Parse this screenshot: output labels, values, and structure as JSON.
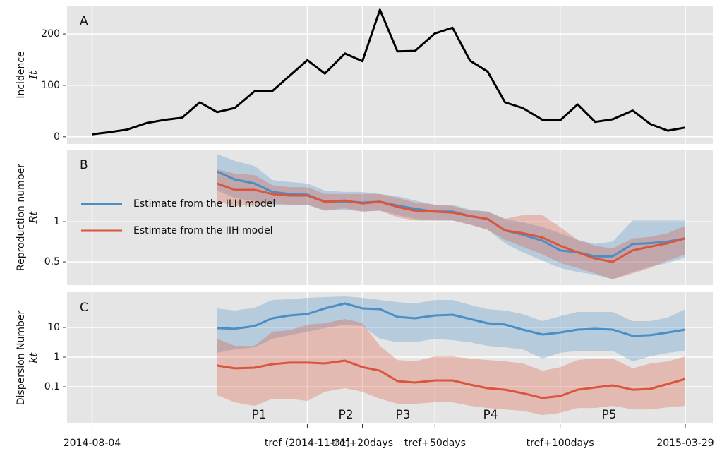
{
  "chart_data": [
    {
      "type": "line",
      "panel_label": "A",
      "ylabel": "Incidence",
      "ylabel_symbol": "It",
      "x": [
        0,
        7,
        14,
        22,
        29,
        36,
        43,
        50,
        57,
        65,
        72,
        79,
        86,
        93,
        101,
        108,
        115,
        122,
        129,
        137,
        144,
        151,
        158,
        165,
        172,
        180,
        187,
        194,
        201,
        208,
        216,
        223,
        230,
        237
      ],
      "series": [
        {
          "color": "#000000",
          "values": [
            5,
            9,
            14,
            27,
            33,
            37,
            67,
            48,
            56,
            89,
            89,
            119,
            149,
            123,
            162,
            147,
            247,
            166,
            167,
            201,
            212,
            148,
            127,
            67,
            56,
            33,
            32,
            63,
            29,
            34,
            51,
            25,
            12,
            18
          ]
        }
      ],
      "ylim": [
        -14,
        255
      ],
      "yticks": [
        0,
        100,
        200
      ],
      "grid": true
    },
    {
      "type": "band-line",
      "panel_label": "B",
      "ylabel": "Reproduction number",
      "ylabel_symbol": "Rt",
      "log_scale": true,
      "x": [
        50,
        57,
        65,
        72,
        79,
        86,
        93,
        101,
        108,
        115,
        122,
        129,
        137,
        144,
        151,
        158,
        165,
        172,
        180,
        187,
        194,
        201,
        208,
        216,
        223,
        230,
        237
      ],
      "series": [
        {
          "name": "Estimate from the ILH model",
          "color": "#4a8ec6",
          "values": [
            2.37,
            2.07,
            1.93,
            1.67,
            1.61,
            1.59,
            1.41,
            1.42,
            1.39,
            1.41,
            1.32,
            1.25,
            1.19,
            1.19,
            1.1,
            1.05,
            0.86,
            0.8,
            0.72,
            0.61,
            0.59,
            0.55,
            0.55,
            0.68,
            0.69,
            0.71,
            0.75
          ],
          "upper": [
            3.21,
            2.85,
            2.61,
            2.05,
            1.98,
            1.93,
            1.71,
            1.67,
            1.67,
            1.61,
            1.55,
            1.44,
            1.34,
            1.34,
            1.23,
            1.19,
            1.05,
            0.99,
            0.91,
            0.82,
            0.73,
            0.68,
            0.71,
            1.02,
            1.02,
            1.02,
            1.02
          ],
          "lower": [
            1.71,
            1.51,
            1.42,
            1.34,
            1.34,
            1.34,
            1.21,
            1.23,
            1.19,
            1.21,
            1.12,
            1.05,
            1.02,
            1.02,
            0.95,
            0.87,
            0.69,
            0.59,
            0.51,
            0.45,
            0.42,
            0.4,
            0.37,
            0.42,
            0.46,
            0.49,
            0.54
          ]
        },
        {
          "name": "Estimate from the IIH model",
          "color": "#d9553b",
          "values": [
            1.93,
            1.73,
            1.73,
            1.61,
            1.57,
            1.57,
            1.41,
            1.44,
            1.37,
            1.41,
            1.29,
            1.21,
            1.19,
            1.17,
            1.1,
            1.05,
            0.86,
            0.82,
            0.76,
            0.66,
            0.59,
            0.53,
            0.5,
            0.61,
            0.65,
            0.69,
            0.75
          ],
          "upper": [
            2.46,
            2.29,
            2.23,
            1.88,
            1.81,
            1.81,
            1.61,
            1.61,
            1.61,
            1.61,
            1.51,
            1.39,
            1.34,
            1.31,
            1.21,
            1.19,
            1.05,
            1.12,
            1.12,
            0.91,
            0.73,
            0.66,
            0.63,
            0.75,
            0.77,
            0.82,
            0.93
          ],
          "lower": [
            1.42,
            1.31,
            1.34,
            1.37,
            1.34,
            1.34,
            1.21,
            1.26,
            1.19,
            1.21,
            1.08,
            1.02,
            1.02,
            1.02,
            0.95,
            0.87,
            0.73,
            0.65,
            0.57,
            0.49,
            0.45,
            0.41,
            0.37,
            0.41,
            0.45,
            0.51,
            0.57
          ]
        }
      ],
      "ylim": [
        0.335,
        3.46
      ],
      "yticks": [
        0.5,
        1
      ],
      "grid": true,
      "legend": "center left"
    },
    {
      "type": "band-line",
      "panel_label": "C",
      "ylabel": "Dispersion Number",
      "ylabel_symbol": "kt",
      "log_scale": true,
      "x": [
        50,
        57,
        65,
        72,
        79,
        86,
        93,
        101,
        108,
        115,
        122,
        129,
        137,
        144,
        151,
        158,
        165,
        172,
        180,
        187,
        194,
        201,
        208,
        216,
        223,
        230,
        237
      ],
      "series": [
        {
          "color": "#4a8ec6",
          "values": [
            9.5,
            9.0,
            11.2,
            20.4,
            25.4,
            28.3,
            44,
            64.5,
            44,
            41.6,
            22.8,
            20.4,
            25.4,
            26.8,
            19.3,
            13.9,
            12.5,
            8.5,
            5.8,
            6.8,
            8.5,
            9.0,
            8.5,
            5.2,
            5.5,
            6.8,
            8.5
          ],
          "upper": [
            44,
            37.3,
            46.4,
            84.8,
            89.6,
            100,
            105.6,
            111.6,
            100,
            84.8,
            71.9,
            64.5,
            84.8,
            84.8,
            57.8,
            41.6,
            37.3,
            28.3,
            16.4,
            24.0,
            33.4,
            33.4,
            33.4,
            16.4,
            16.4,
            21.5,
            41.6
          ],
          "lower": [
            1.39,
            1.83,
            2.15,
            4.16,
            5.47,
            7.2,
            9.5,
            12.5,
            11.2,
            4.16,
            3.16,
            3.16,
            4.16,
            3.73,
            3.16,
            2.4,
            2.15,
            1.83,
            0.9,
            1.39,
            1.64,
            1.64,
            1.64,
            0.72,
            1.06,
            1.39,
            1.64
          ]
        },
        {
          "color": "#d9553b",
          "values": [
            0.52,
            0.42,
            0.44,
            0.58,
            0.65,
            0.65,
            0.61,
            0.76,
            0.46,
            0.35,
            0.155,
            0.139,
            0.164,
            0.164,
            0.118,
            0.09,
            0.08,
            0.061,
            0.042,
            0.049,
            0.08,
            0.095,
            0.112,
            0.08,
            0.085,
            0.125,
            0.183
          ],
          "upper": [
            4.16,
            2.4,
            2.4,
            7.2,
            8.03,
            12.5,
            13.9,
            19.3,
            13.9,
            2.4,
            0.8,
            0.72,
            1.06,
            1.06,
            0.9,
            0.8,
            0.72,
            0.61,
            0.35,
            0.46,
            0.8,
            0.9,
            0.9,
            0.42,
            0.61,
            0.72,
            1.06
          ],
          "lower": [
            0.052,
            0.03,
            0.0228,
            0.0394,
            0.0394,
            0.0334,
            0.068,
            0.09,
            0.068,
            0.0394,
            0.0268,
            0.0268,
            0.03,
            0.03,
            0.0228,
            0.0193,
            0.0173,
            0.0155,
            0.0112,
            0.0132,
            0.0193,
            0.0193,
            0.0228,
            0.0173,
            0.0173,
            0.0204,
            0.0228
          ]
        }
      ],
      "ylim": [
        0.0058,
        155
      ],
      "yticks": [
        0.1,
        1,
        10
      ],
      "grid": true,
      "xlim": [
        -10,
        248
      ],
      "xticks": [
        {
          "value": 0,
          "label": "2014-08-04"
        },
        {
          "value": 86,
          "label": "tref (2014-11-01)"
        },
        {
          "value": 108,
          "label": "tref+20days"
        },
        {
          "value": 137,
          "label": "tref+50days"
        },
        {
          "value": 187,
          "label": "tref+100days"
        },
        {
          "value": 237,
          "label": "2015-03-29"
        }
      ],
      "period_labels": [
        "P1",
        "P2",
        "P3",
        "P4",
        "P5"
      ]
    }
  ]
}
